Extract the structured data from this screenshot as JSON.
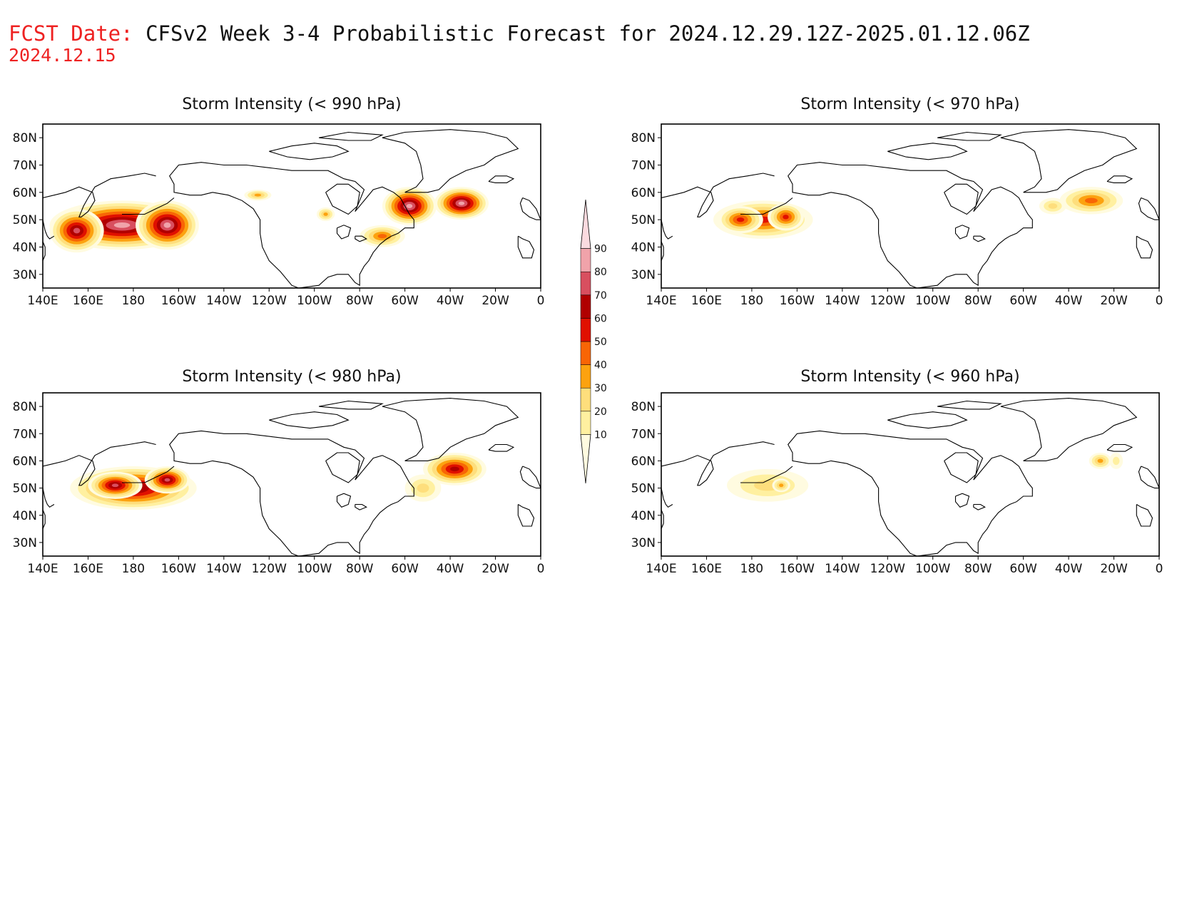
{
  "header": {
    "fcst_label": "FCST Date:",
    "title": "CFSv2 Week 3-4 Probabilistic Forecast for 2024.12.29.12Z-2025.01.12.06Z",
    "fcst_date": "2024.12.15"
  },
  "panels": [
    {
      "id": "p990",
      "title": "Storm Intensity (< 990 hPa)",
      "blobs": [
        {
          "lon": 175,
          "lat": 48,
          "rx": 32,
          "ry": 9,
          "v": 85
        },
        {
          "lon": 155,
          "lat": 46,
          "rx": 12,
          "ry": 8,
          "v": 72
        },
        {
          "lon": 195,
          "lat": 48,
          "rx": 14,
          "ry": 9,
          "v": 80
        },
        {
          "lon": 302,
          "lat": 55,
          "rx": 12,
          "ry": 7,
          "v": 80
        },
        {
          "lon": 325,
          "lat": 56,
          "rx": 12,
          "ry": 6,
          "v": 82
        },
        {
          "lon": 290,
          "lat": 44,
          "rx": 10,
          "ry": 4,
          "v": 45
        },
        {
          "lon": 235,
          "lat": 59,
          "rx": 6,
          "ry": 2,
          "v": 32
        },
        {
          "lon": 265,
          "lat": 52,
          "rx": 4,
          "ry": 2.5,
          "v": 35
        }
      ]
    },
    {
      "id": "p970",
      "title": "Storm Intensity (< 970 hPa)",
      "blobs": [
        {
          "lon": 185,
          "lat": 50,
          "rx": 22,
          "ry": 7,
          "v": 50
        },
        {
          "lon": 175,
          "lat": 50,
          "rx": 10,
          "ry": 5,
          "v": 55
        },
        {
          "lon": 195,
          "lat": 51,
          "rx": 8,
          "ry": 5,
          "v": 52
        },
        {
          "lon": 330,
          "lat": 57,
          "rx": 14,
          "ry": 5,
          "v": 40
        },
        {
          "lon": 313,
          "lat": 55,
          "rx": 6,
          "ry": 3,
          "v": 22
        }
      ]
    },
    {
      "id": "p980",
      "title": "Storm Intensity (< 980 hPa)",
      "blobs": [
        {
          "lon": 180,
          "lat": 50,
          "rx": 28,
          "ry": 8,
          "v": 70
        },
        {
          "lon": 172,
          "lat": 51,
          "rx": 12,
          "ry": 5,
          "v": 78
        },
        {
          "lon": 195,
          "lat": 53,
          "rx": 10,
          "ry": 5,
          "v": 75
        },
        {
          "lon": 322,
          "lat": 57,
          "rx": 14,
          "ry": 6,
          "v": 62
        },
        {
          "lon": 308,
          "lat": 50,
          "rx": 8,
          "ry": 5,
          "v": 25
        }
      ]
    },
    {
      "id": "p960",
      "title": "Storm Intensity (< 960 hPa)",
      "blobs": [
        {
          "lon": 187,
          "lat": 51,
          "rx": 18,
          "ry": 6,
          "v": 20
        },
        {
          "lon": 193,
          "lat": 51,
          "rx": 4,
          "ry": 2.5,
          "v": 32
        },
        {
          "lon": 334,
          "lat": 60,
          "rx": 5,
          "ry": 3,
          "v": 30
        },
        {
          "lon": 341,
          "lat": 60,
          "rx": 3,
          "ry": 3,
          "v": 18
        }
      ]
    }
  ],
  "axes": {
    "lat_ticks": [
      "80N",
      "70N",
      "60N",
      "50N",
      "40N",
      "30N"
    ],
    "lon_ticks": [
      "140E",
      "160E",
      "180",
      "160W",
      "140W",
      "120W",
      "100W",
      "80W",
      "60W",
      "40W",
      "20W",
      "0"
    ],
    "lon_range": [
      140,
      360
    ],
    "lat_range": [
      25,
      85
    ]
  },
  "colorbar": {
    "levels": [
      "10",
      "20",
      "30",
      "40",
      "50",
      "60",
      "70",
      "80",
      "90"
    ],
    "colors": [
      "#fffbe0",
      "#fff0a0",
      "#fede7c",
      "#fca20f",
      "#f86505",
      "#e01000",
      "#b00000",
      "#d84f5f",
      "#f0a3aa",
      "#fadadf"
    ]
  }
}
